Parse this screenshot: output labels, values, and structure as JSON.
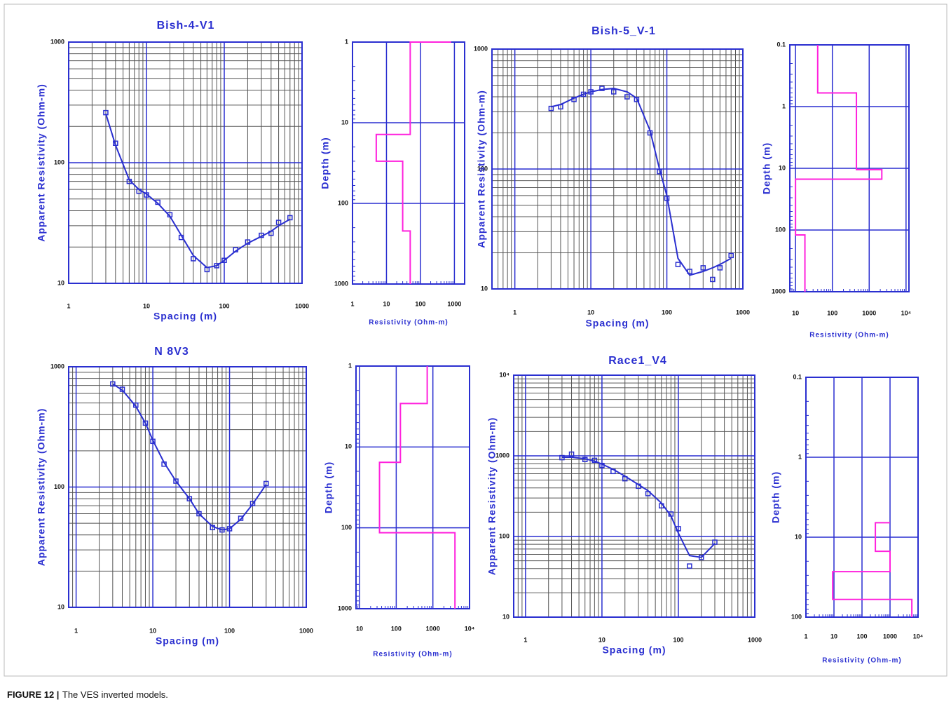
{
  "caption": {
    "figure": "FIGURE 12 |",
    "text": "The VES inverted models."
  },
  "chart_data": [
    {
      "type": "line",
      "title": "Bish-4-V1",
      "xlabel": "Spacing (m)",
      "ylabel": "Apparent Resistivity (Ohm-m)",
      "log_x": true,
      "log_y": true,
      "xlim": [
        1,
        1000
      ],
      "ylim": [
        10,
        1000
      ],
      "xticks": [
        1,
        10,
        100,
        1000
      ],
      "yticks": [
        10,
        100,
        1000
      ],
      "grid": true,
      "minor_grid": true,
      "x": [
        3,
        4,
        6,
        8,
        10,
        14,
        20,
        28,
        40,
        60,
        80,
        100,
        140,
        200,
        300,
        400,
        500,
        700
      ],
      "series": [
        {
          "color": "#2a2fd0",
          "marker": "square",
          "line": false,
          "values": [
            260,
            145,
            70,
            58,
            54,
            47,
            37,
            24,
            16,
            13,
            14,
            15.5,
            19,
            22,
            25,
            26,
            32,
            35
          ]
        },
        {
          "color": "#2a2fd0",
          "line": true,
          "values": [
            255,
            140,
            72,
            60,
            55,
            46,
            36,
            25,
            17,
            13.5,
            14,
            15.5,
            18.5,
            21.5,
            24.5,
            27,
            30,
            34
          ]
        }
      ]
    },
    {
      "type": "line",
      "xlabel": "Resistivity (Ohm-m)",
      "ylabel": "Depth (m)",
      "log_x": true,
      "log_y": true,
      "y_inverted": true,
      "xlim": [
        1,
        2000
      ],
      "ylim": [
        1,
        1000
      ],
      "xticks": [
        1,
        10,
        100,
        1000
      ],
      "yticks": [
        1,
        10,
        100,
        1000
      ],
      "grid": true,
      "minor_ticks": true,
      "series": [
        {
          "color": "#ff22dd",
          "line": true,
          "x": [
            800,
            800,
            50,
            50,
            5,
            5,
            30,
            30,
            50,
            50
          ],
          "values": [
            1,
            1,
            1,
            14,
            14,
            30,
            30,
            220,
            220,
            1000
          ]
        }
      ]
    },
    {
      "type": "line",
      "title": "Bish-5_V-1",
      "xlabel": "Spacing (m)",
      "ylabel": "Apparent Resistivity (Ohm-m)",
      "log_x": true,
      "log_y": true,
      "xlim": [
        0.5,
        1000
      ],
      "ylim": [
        10,
        1000
      ],
      "xticks": [
        1,
        10,
        100,
        1000
      ],
      "yticks": [
        10,
        100,
        1000
      ],
      "grid": true,
      "minor_grid": true,
      "x": [
        3,
        4,
        6,
        8,
        10,
        14,
        20,
        30,
        40,
        60,
        80,
        100,
        140,
        200,
        300,
        400,
        500,
        700
      ],
      "series": [
        {
          "color": "#2a2fd0",
          "marker": "square",
          "line": false,
          "values": [
            320,
            330,
            380,
            420,
            440,
            470,
            440,
            400,
            380,
            200,
            95,
            57,
            16,
            14,
            15,
            12,
            15,
            19
          ]
        },
        {
          "color": "#2a2fd0",
          "line": true,
          "values": [
            330,
            345,
            390,
            420,
            440,
            460,
            470,
            440,
            390,
            210,
            100,
            60,
            18,
            13,
            14,
            15,
            16,
            18
          ]
        }
      ]
    },
    {
      "type": "line",
      "xlabel": "Resistivity (Ohm-m)",
      "ylabel": "Depth (m)",
      "log_x": true,
      "log_y": true,
      "y_inverted": true,
      "xlim": [
        7,
        12000
      ],
      "ylim": [
        0.1,
        1000
      ],
      "xticks": [
        10,
        100,
        1000,
        {
          "value": 10000,
          "label": "10⁴"
        }
      ],
      "yticks": [
        0.1,
        1,
        10,
        100,
        1000
      ],
      "grid": true,
      "minor_ticks": true,
      "series": [
        {
          "color": "#ff22dd",
          "line": true,
          "x": [
            40,
            40,
            450,
            450,
            2200,
            2200,
            10,
            10,
            18,
            18
          ],
          "values": [
            0.1,
            0.6,
            0.6,
            10.5,
            10.5,
            15,
            15,
            120,
            120,
            1000
          ]
        }
      ]
    },
    {
      "type": "line",
      "title": "N 8V3",
      "xlabel": "Spacing (m)",
      "ylabel": "Apparent Resistivity (Ohm-m)",
      "log_x": true,
      "log_y": true,
      "xlim": [
        0.8,
        1000
      ],
      "ylim": [
        10,
        1000
      ],
      "xticks": [
        1,
        10,
        100,
        1000
      ],
      "yticks": [
        10,
        100,
        1000
      ],
      "grid": true,
      "minor_grid": true,
      "x": [
        3,
        4,
        6,
        8,
        10,
        14,
        20,
        30,
        40,
        60,
        80,
        100,
        140,
        200,
        300
      ],
      "series": [
        {
          "color": "#2a2fd0",
          "marker": "square",
          "line": false,
          "values": [
            720,
            650,
            480,
            340,
            240,
            155,
            112,
            80,
            60,
            46,
            44,
            45,
            55,
            73,
            107
          ]
        },
        {
          "color": "#2a2fd0",
          "line": true,
          "values": [
            720,
            640,
            470,
            340,
            245,
            160,
            112,
            80,
            60,
            47,
            44,
            45,
            54,
            72,
            105
          ]
        }
      ]
    },
    {
      "type": "line",
      "xlabel": "Resistivity (Ohm-m)",
      "ylabel": "Depth (m)",
      "log_x": true,
      "log_y": true,
      "y_inverted": true,
      "xlim": [
        8,
        10000
      ],
      "ylim": [
        1,
        1000
      ],
      "xticks": [
        10,
        100,
        1000,
        {
          "value": 10000,
          "label": "10⁴"
        }
      ],
      "yticks": [
        1,
        10,
        100,
        1000
      ],
      "grid": true,
      "minor_ticks": true,
      "series": [
        {
          "color": "#ff22dd",
          "line": true,
          "x": [
            700,
            700,
            130,
            130,
            35,
            35,
            4000,
            4000
          ],
          "values": [
            1,
            2.9,
            2.9,
            15.5,
            15.5,
            115,
            115,
            1000
          ]
        }
      ]
    },
    {
      "type": "line",
      "title": "Race1_V4",
      "xlabel": "Spacing (m)",
      "ylabel": "Apparent Resistivity (Ohm-m)",
      "log_x": true,
      "log_y": true,
      "xlim": [
        0.7,
        1000
      ],
      "ylim": [
        10,
        10000
      ],
      "xticks": [
        1,
        10,
        100,
        1000
      ],
      "yticks": [
        10,
        100,
        1000,
        {
          "value": 10000,
          "label": "10⁴"
        }
      ],
      "grid": true,
      "minor_grid": true,
      "x": [
        3,
        4,
        6,
        8,
        10,
        14,
        20,
        30,
        40,
        60,
        80,
        100,
        140,
        200,
        300
      ],
      "series": [
        {
          "color": "#2a2fd0",
          "marker": "square",
          "line": false,
          "values": [
            950,
            1050,
            900,
            880,
            760,
            640,
            520,
            420,
            340,
            240,
            190,
            125,
            43,
            55,
            85
          ]
        },
        {
          "color": "#2a2fd0",
          "line": true,
          "values": [
            960,
            960,
            920,
            860,
            790,
            680,
            560,
            440,
            370,
            260,
            180,
            110,
            58,
            55,
            82
          ]
        }
      ]
    },
    {
      "type": "line",
      "xlabel": "Resistivity (Ohm-m)",
      "ylabel": "Depth (m)",
      "log_x": true,
      "log_y": true,
      "y_inverted": true,
      "xlim": [
        1,
        10000
      ],
      "ylim": [
        0.1,
        100
      ],
      "xticks": [
        1,
        10,
        100,
        1000,
        {
          "value": 10000,
          "label": "10⁴"
        }
      ],
      "yticks": [
        0.1,
        1,
        10,
        100
      ],
      "grid": true,
      "minor_ticks": true,
      "series": [
        {
          "color": "#ff22dd",
          "line": true,
          "x": [
            1000,
            300,
            300,
            1000,
            1000,
            9,
            9,
            6000,
            6000
          ],
          "values": [
            6.6,
            6.6,
            15,
            15,
            27,
            27,
            60,
            60,
            100
          ]
        }
      ]
    }
  ]
}
